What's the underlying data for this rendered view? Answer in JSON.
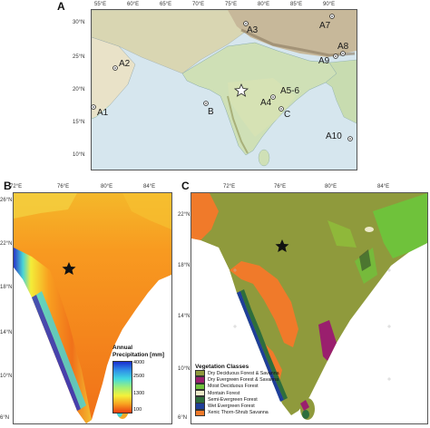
{
  "panel_a": {
    "letter": "A",
    "lon_ticks": [
      "55°E",
      "60°E",
      "65°E",
      "70°E",
      "75°E",
      "80°E",
      "85°E",
      "90°E"
    ],
    "lat_ticks": [
      "30°N",
      "25°N",
      "20°N",
      "15°N",
      "10°N"
    ],
    "sites": [
      "A1",
      "A2",
      "A3",
      "A4",
      "A5-6",
      "A7",
      "A8",
      "A9",
      "A10",
      "B",
      "C"
    ]
  },
  "panel_b": {
    "letter": "B",
    "lon_ticks": [
      "72°E",
      "76°E",
      "80°E",
      "84°E"
    ],
    "lat_ticks": [
      "26°N",
      "22°N",
      "18°N",
      "14°N",
      "10°N",
      "6°N"
    ],
    "colorbar": {
      "title_line1": "Annual",
      "title_line2": "Precipitation [mm]",
      "ticks": [
        "4000",
        "2500",
        "1300",
        "100"
      ],
      "colors": [
        "#1b2fd0",
        "#2f8fe8",
        "#40d8e0",
        "#9ef07a",
        "#f4f23a",
        "#f8a020",
        "#ea3c10"
      ]
    }
  },
  "panel_c": {
    "letter": "C",
    "lon_ticks": [
      "72°E",
      "76°E",
      "80°E",
      "84°E"
    ],
    "lat_ticks": [
      "22°N",
      "18°N",
      "14°N",
      "10°N",
      "6°N"
    ],
    "legend_title": "Vegetation Classes",
    "vegetation_classes": [
      {
        "label": "Dry Deciduous Forest & Savanna",
        "color": "#8f9a3c"
      },
      {
        "label": "Dry Evergreen Forest & Savanna",
        "color": "#9a1f6e"
      },
      {
        "label": "Moist Deciduous Forest",
        "color": "#6fc23b"
      },
      {
        "label": "Montain Forest",
        "color": "#ece9c9"
      },
      {
        "label": "Semi-Evergreen Forest",
        "color": "#2e6e3c"
      },
      {
        "label": "Wet Evergreen Forest",
        "color": "#1f3f9a"
      },
      {
        "label": "Xenic Thorn-Shrub Savanna",
        "color": "#f07a2a"
      }
    ]
  }
}
